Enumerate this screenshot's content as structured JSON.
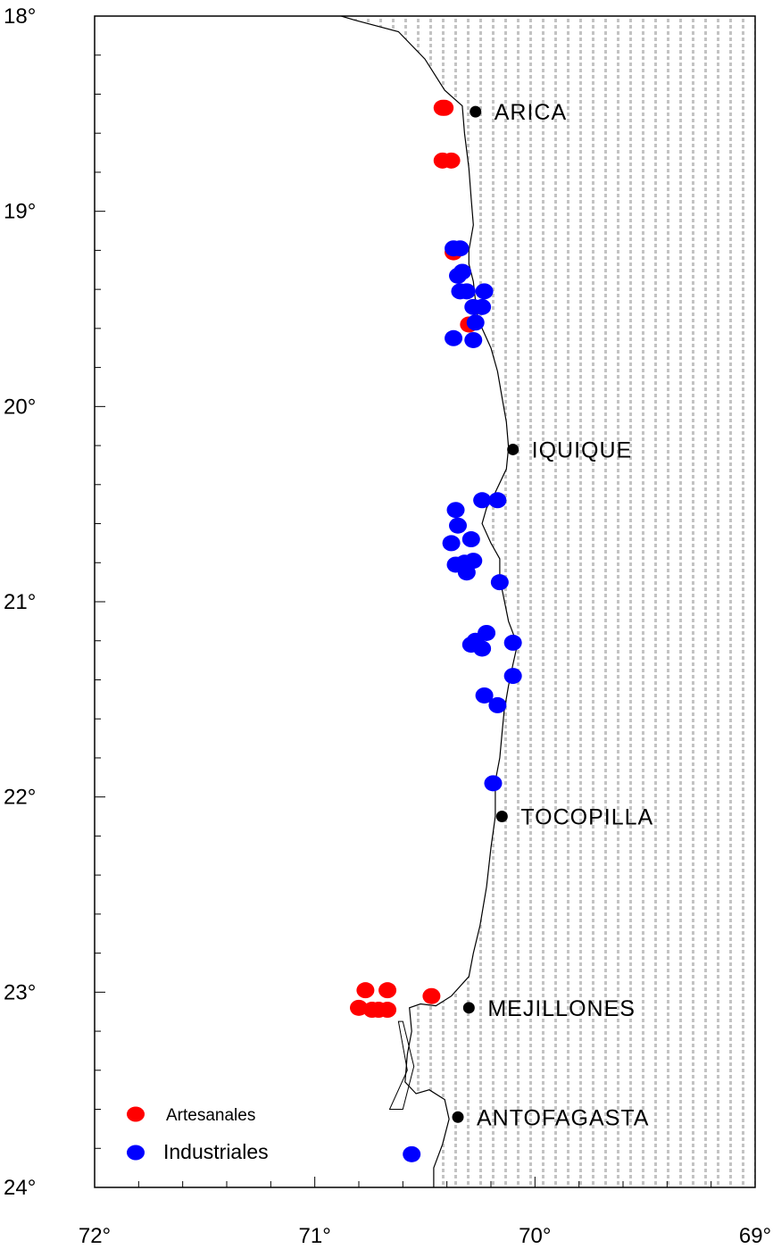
{
  "chart_data": {
    "type": "map",
    "xlim": [
      72,
      69
    ],
    "ylim": [
      18,
      24
    ],
    "x_ticks": [
      {
        "value": 72,
        "label": "72°"
      },
      {
        "value": 71,
        "label": "71°"
      },
      {
        "value": 70,
        "label": "70°"
      },
      {
        "value": 69,
        "label": "69°"
      }
    ],
    "y_ticks": [
      {
        "value": 18,
        "label": "18°"
      },
      {
        "value": 19,
        "label": "19°"
      },
      {
        "value": 20,
        "label": "20°"
      },
      {
        "value": 21,
        "label": "21°"
      },
      {
        "value": 22,
        "label": "22°"
      },
      {
        "value": 23,
        "label": "23°"
      },
      {
        "value": 24,
        "label": "24°"
      }
    ],
    "minor_tick_step": 0.2,
    "land_pattern": "dotted-vertical-lines",
    "coastline": [
      [
        70.88,
        18.0
      ],
      [
        70.82,
        18.02
      ],
      [
        70.62,
        18.08
      ],
      [
        70.5,
        18.22
      ],
      [
        70.41,
        18.38
      ],
      [
        70.33,
        18.46
      ],
      [
        70.32,
        18.6
      ],
      [
        70.3,
        18.78
      ],
      [
        70.29,
        18.93
      ],
      [
        70.28,
        19.07
      ],
      [
        70.3,
        19.2
      ],
      [
        70.3,
        19.27
      ],
      [
        70.28,
        19.36
      ],
      [
        70.27,
        19.46
      ],
      [
        70.26,
        19.54
      ],
      [
        70.24,
        19.6
      ],
      [
        70.2,
        19.7
      ],
      [
        70.17,
        19.82
      ],
      [
        70.15,
        19.95
      ],
      [
        70.13,
        20.08
      ],
      [
        70.12,
        20.21
      ],
      [
        70.13,
        20.32
      ],
      [
        70.18,
        20.44
      ],
      [
        70.22,
        20.52
      ],
      [
        70.24,
        20.6
      ],
      [
        70.2,
        20.7
      ],
      [
        70.16,
        20.78
      ],
      [
        70.16,
        20.88
      ],
      [
        70.14,
        20.99
      ],
      [
        70.12,
        21.1
      ],
      [
        70.08,
        21.22
      ],
      [
        70.1,
        21.32
      ],
      [
        70.12,
        21.43
      ],
      [
        70.14,
        21.56
      ],
      [
        70.15,
        21.68
      ],
      [
        70.16,
        21.8
      ],
      [
        70.18,
        21.92
      ],
      [
        70.18,
        22.1
      ],
      [
        70.2,
        22.26
      ],
      [
        70.22,
        22.46
      ],
      [
        70.25,
        22.66
      ],
      [
        70.28,
        22.8
      ],
      [
        70.3,
        22.92
      ],
      [
        70.38,
        23.02
      ],
      [
        70.45,
        23.07
      ],
      [
        70.52,
        23.06
      ],
      [
        70.57,
        23.08
      ],
      [
        70.56,
        23.2
      ],
      [
        70.58,
        23.32
      ],
      [
        70.59,
        23.46
      ],
      [
        70.54,
        23.52
      ],
      [
        70.48,
        23.5
      ],
      [
        70.41,
        23.55
      ],
      [
        70.39,
        23.65
      ],
      [
        70.42,
        23.78
      ],
      [
        70.46,
        23.9
      ],
      [
        70.46,
        24.0
      ]
    ],
    "ocean_islets": [
      [
        [
          70.62,
          23.15
        ],
        [
          70.58,
          23.4
        ],
        [
          70.66,
          23.6
        ],
        [
          70.6,
          23.6
        ],
        [
          70.55,
          23.38
        ],
        [
          70.6,
          23.15
        ]
      ]
    ],
    "cities": [
      {
        "name": "ARICA",
        "lon": 70.27,
        "lat": 18.49
      },
      {
        "name": "IQUIQUE",
        "lon": 70.1,
        "lat": 20.22
      },
      {
        "name": "TOCOPILLA",
        "lon": 70.15,
        "lat": 22.1
      },
      {
        "name": "MEJILLONES",
        "lon": 70.3,
        "lat": 23.08
      },
      {
        "name": "ANTOFAGASTA",
        "lon": 70.35,
        "lat": 23.64
      }
    ],
    "series": [
      {
        "name": "Artesanales",
        "color": "#ff0000",
        "points": [
          [
            70.41,
            18.47
          ],
          [
            70.42,
            18.47
          ],
          [
            70.42,
            18.74
          ],
          [
            70.38,
            18.74
          ],
          [
            70.37,
            19.21
          ],
          [
            70.3,
            19.58
          ],
          [
            70.47,
            23.02
          ],
          [
            70.77,
            22.99
          ],
          [
            70.67,
            22.99
          ],
          [
            70.8,
            23.08
          ],
          [
            70.74,
            23.09
          ],
          [
            70.71,
            23.09
          ],
          [
            70.67,
            23.09
          ]
        ]
      },
      {
        "name": "Industriales",
        "color": "#0000ff",
        "points": [
          [
            70.37,
            19.19
          ],
          [
            70.34,
            19.19
          ],
          [
            70.35,
            19.33
          ],
          [
            70.33,
            19.31
          ],
          [
            70.31,
            19.41
          ],
          [
            70.34,
            19.41
          ],
          [
            70.23,
            19.41
          ],
          [
            70.28,
            19.49
          ],
          [
            70.24,
            19.49
          ],
          [
            70.27,
            19.57
          ],
          [
            70.37,
            19.65
          ],
          [
            70.28,
            19.66
          ],
          [
            70.36,
            20.53
          ],
          [
            70.24,
            20.48
          ],
          [
            70.17,
            20.48
          ],
          [
            70.35,
            20.61
          ],
          [
            70.29,
            20.68
          ],
          [
            70.38,
            20.7
          ],
          [
            70.36,
            20.81
          ],
          [
            70.28,
            20.79
          ],
          [
            70.32,
            20.8
          ],
          [
            70.31,
            20.85
          ],
          [
            70.16,
            20.9
          ],
          [
            70.22,
            21.16
          ],
          [
            70.27,
            21.2
          ],
          [
            70.29,
            21.22
          ],
          [
            70.24,
            21.24
          ],
          [
            70.1,
            21.21
          ],
          [
            70.1,
            21.38
          ],
          [
            70.23,
            21.48
          ],
          [
            70.17,
            21.53
          ],
          [
            70.19,
            21.93
          ],
          [
            70.56,
            23.83
          ]
        ]
      }
    ],
    "legend": {
      "placement": "bottom-left",
      "entries": [
        {
          "label": "Artesanales",
          "color": "#ff0000"
        },
        {
          "label": "Industriales",
          "color": "#0000ff"
        }
      ]
    }
  }
}
